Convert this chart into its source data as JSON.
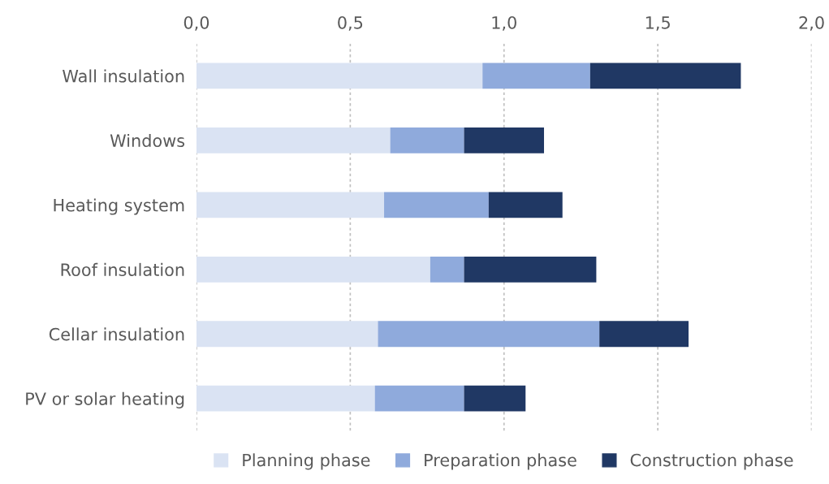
{
  "chart_data": {
    "type": "bar",
    "orientation": "horizontal",
    "stacked": true,
    "categories": [
      "Wall insulation",
      "Windows",
      "Heating system",
      "Roof insulation",
      "Cellar insulation",
      "PV or solar heating"
    ],
    "series": [
      {
        "name": "Planning phase",
        "color": "#dae3f3",
        "values": [
          0.93,
          0.63,
          0.61,
          0.76,
          0.59,
          0.58
        ]
      },
      {
        "name": "Preparation phase",
        "color": "#8faadc",
        "values": [
          0.35,
          0.24,
          0.34,
          0.11,
          0.72,
          0.29
        ]
      },
      {
        "name": "Construction phase",
        "color": "#203864",
        "values": [
          0.49,
          0.26,
          0.24,
          0.43,
          0.29,
          0.2
        ]
      }
    ],
    "xlim": [
      0,
      2.0
    ],
    "xticks": [
      {
        "value": 0,
        "label": "0,0"
      },
      {
        "value": 0.5,
        "label": "0,5"
      },
      {
        "value": 1.0,
        "label": "1,0"
      },
      {
        "value": 1.5,
        "label": "1,5"
      },
      {
        "value": 2.0,
        "label": "2,0"
      }
    ],
    "grid": "x",
    "legend": "bottom"
  }
}
